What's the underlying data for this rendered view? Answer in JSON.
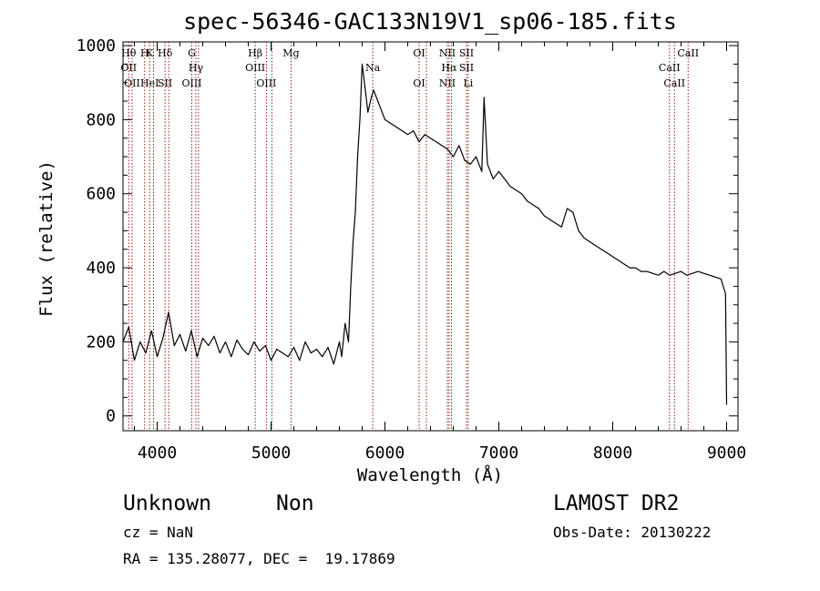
{
  "chart_data": {
    "type": "line",
    "title": "spec-56346-GAC133N19V1_sp06-185.fits",
    "xlabel": "Wavelength (Å)",
    "ylabel": "Flux (relative)",
    "xlim": [
      3700,
      9100
    ],
    "ylim": [
      -40,
      1010
    ],
    "xticks": [
      4000,
      5000,
      6000,
      7000,
      8000,
      9000
    ],
    "yticks": [
      0,
      200,
      400,
      600,
      800,
      1000
    ],
    "grid": false,
    "line_color": "#000000",
    "marker_color": "#8b0000",
    "series": [
      {
        "x": [
          3700,
          3750,
          3800,
          3850,
          3900,
          3950,
          4000,
          4050,
          4100,
          4150,
          4200,
          4250,
          4300,
          4350,
          4400,
          4450,
          4500,
          4550,
          4600,
          4650,
          4700,
          4750,
          4800,
          4850,
          4900,
          4950,
          5000,
          5050,
          5100,
          5150,
          5200,
          5250,
          5300,
          5350,
          5400,
          5450,
          5500,
          5550,
          5600,
          5620,
          5650,
          5680,
          5700,
          5720,
          5740,
          5760,
          5780,
          5800,
          5820,
          5850,
          5880,
          5900,
          5950,
          6000,
          6050,
          6100,
          6150,
          6200,
          6250,
          6300,
          6350,
          6400,
          6450,
          6500,
          6550,
          6600,
          6650,
          6700,
          6750,
          6800,
          6850,
          6870,
          6900,
          6950,
          7000,
          7050,
          7100,
          7150,
          7200,
          7250,
          7300,
          7350,
          7400,
          7450,
          7500,
          7550,
          7600,
          7650,
          7700,
          7750,
          7800,
          7850,
          7900,
          7950,
          8000,
          8050,
          8100,
          8150,
          8200,
          8250,
          8300,
          8350,
          8400,
          8450,
          8500,
          8550,
          8600,
          8650,
          8700,
          8750,
          8800,
          8850,
          8900,
          8950,
          8990,
          9000
        ],
        "y": [
          200,
          240,
          150,
          200,
          170,
          230,
          160,
          210,
          280,
          190,
          220,
          175,
          230,
          160,
          210,
          190,
          215,
          170,
          200,
          160,
          205,
          180,
          165,
          200,
          175,
          190,
          150,
          180,
          170,
          160,
          185,
          150,
          200,
          170,
          180,
          160,
          185,
          140,
          200,
          160,
          250,
          200,
          350,
          470,
          550,
          700,
          800,
          950,
          900,
          820,
          860,
          880,
          840,
          800,
          790,
          780,
          770,
          760,
          770,
          740,
          760,
          750,
          740,
          730,
          720,
          700,
          730,
          690,
          680,
          700,
          660,
          860,
          680,
          640,
          660,
          640,
          620,
          610,
          600,
          580,
          570,
          560,
          540,
          530,
          520,
          510,
          560,
          550,
          500,
          480,
          470,
          460,
          450,
          440,
          430,
          420,
          410,
          400,
          400,
          390,
          390,
          385,
          380,
          390,
          380,
          385,
          390,
          380,
          385,
          390,
          385,
          380,
          375,
          370,
          330,
          30
        ]
      }
    ],
    "spectral_lines": [
      {
        "x": 3750,
        "top": "Hθ",
        "bottom": "OII"
      },
      {
        "x": 3780,
        "top": "",
        "bottom": "OII"
      },
      {
        "x": 3890,
        "top": "H",
        "bottom": ""
      },
      {
        "x": 3934,
        "top": "K",
        "bottom": "HeI"
      },
      {
        "x": 3968,
        "top": "",
        "bottom": ""
      },
      {
        "x": 4069,
        "top": "Hδ",
        "bottom": "SII"
      },
      {
        "x": 4102,
        "top": "",
        "bottom": ""
      },
      {
        "x": 4304,
        "top": "G",
        "bottom": "OIII"
      },
      {
        "x": 4340,
        "top": "",
        "bottom": "Hγ"
      },
      {
        "x": 4363,
        "top": "",
        "bottom": ""
      },
      {
        "x": 4861,
        "top": "Hβ",
        "bottom": "OIII"
      },
      {
        "x": 4959,
        "top": "",
        "bottom": "OIII"
      },
      {
        "x": 5007,
        "top": "",
        "bottom": ""
      },
      {
        "x": 5175,
        "top": "Mg",
        "bottom": ""
      },
      {
        "x": 5893,
        "top": "",
        "bottom": "Na"
      },
      {
        "x": 6300,
        "top": "OI",
        "bottom": "OI"
      },
      {
        "x": 6364,
        "top": "",
        "bottom": ""
      },
      {
        "x": 6548,
        "top": "NII",
        "bottom": "NII"
      },
      {
        "x": 6563,
        "top": "",
        "bottom": "Hα"
      },
      {
        "x": 6583,
        "top": "",
        "bottom": ""
      },
      {
        "x": 6716,
        "top": "SII",
        "bottom": "SII"
      },
      {
        "x": 6731,
        "top": "",
        "bottom": "Li"
      },
      {
        "x": 8498,
        "top": "",
        "bottom": "CaII"
      },
      {
        "x": 8542,
        "top": "",
        "bottom": "CaII"
      },
      {
        "x": 8662,
        "top": "CaII",
        "bottom": ""
      }
    ]
  },
  "info": {
    "class": "Unknown",
    "subclass": "Non",
    "survey": "LAMOST DR2",
    "cz": "cz = NaN",
    "obs_date": "Obs-Date: 20130222",
    "coords": "RA = 135.28077, DEC =  19.17869"
  }
}
